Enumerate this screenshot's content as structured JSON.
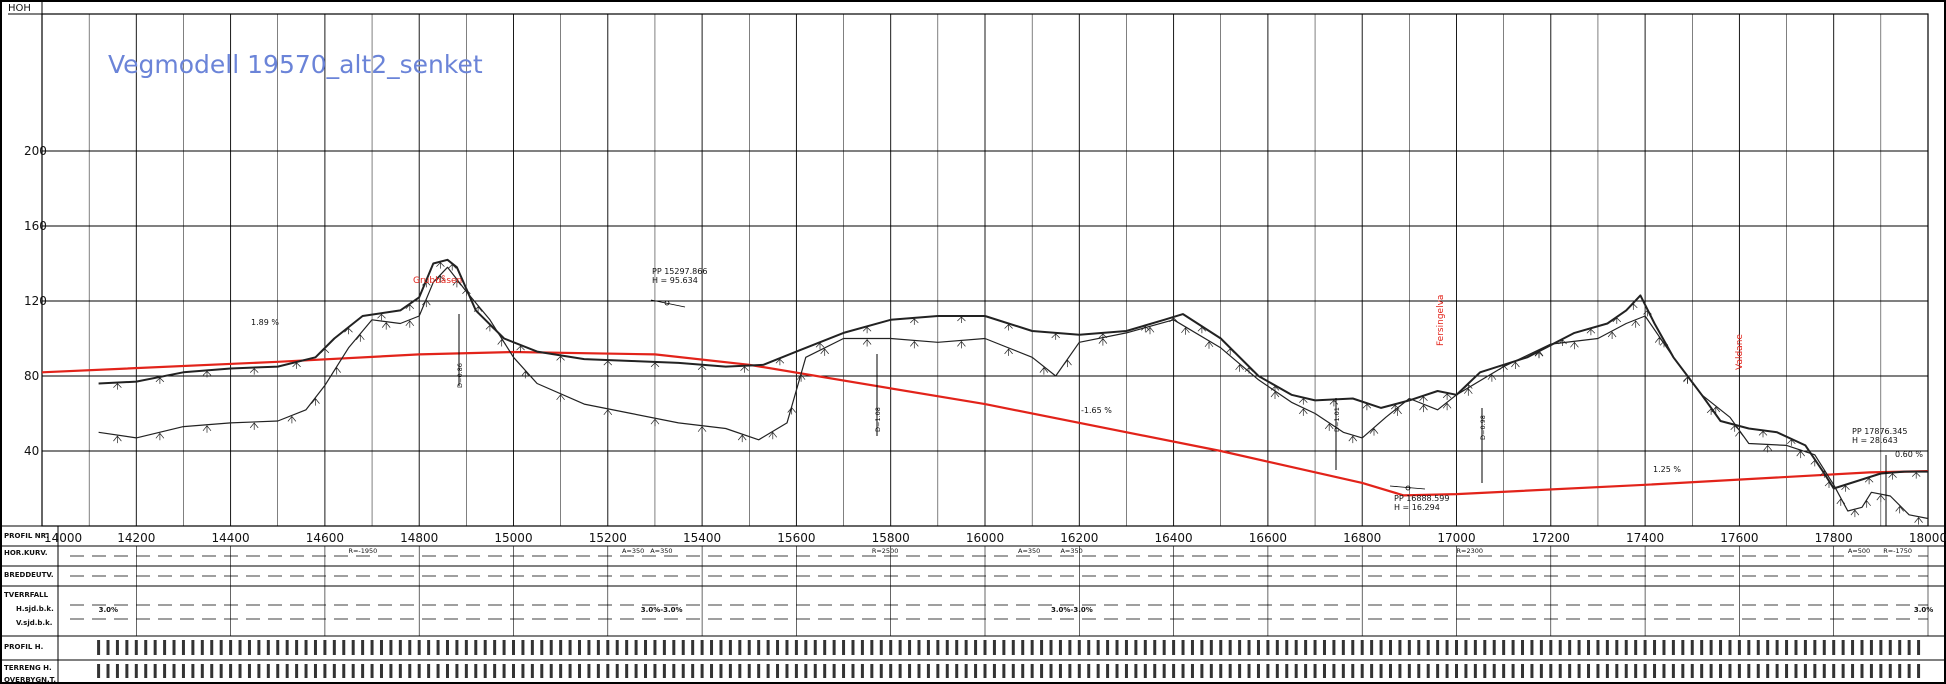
{
  "title": "Vegmodell 19570_alt2_senket",
  "y_axis": {
    "label": "HOH",
    "ticks": [
      {
        "label": "200",
        "value": 200
      },
      {
        "label": "160",
        "value": 160
      },
      {
        "label": "120",
        "value": 120
      },
      {
        "label": "80",
        "value": 80
      },
      {
        "label": "40",
        "value": 40
      }
    ]
  },
  "x_axis": {
    "label": "PROFIL NR.",
    "first_label": "14000",
    "ticks": [
      {
        "label": "14200",
        "value": 14200
      },
      {
        "label": "14400",
        "value": 14400
      },
      {
        "label": "14600",
        "value": 14600
      },
      {
        "label": "14800",
        "value": 14800
      },
      {
        "label": "15000",
        "value": 15000
      },
      {
        "label": "15200",
        "value": 15200
      },
      {
        "label": "15400",
        "value": 15400
      },
      {
        "label": "15600",
        "value": 15600
      },
      {
        "label": "15800",
        "value": 15800
      },
      {
        "label": "16000",
        "value": 16000
      },
      {
        "label": "16200",
        "value": 16200
      },
      {
        "label": "16400",
        "value": 16400
      },
      {
        "label": "16600",
        "value": 16600
      },
      {
        "label": "16800",
        "value": 16800
      },
      {
        "label": "17000",
        "value": 17000
      },
      {
        "label": "17200",
        "value": 17200
      },
      {
        "label": "17400",
        "value": 17400
      },
      {
        "label": "17600",
        "value": 17600
      },
      {
        "label": "17800",
        "value": 17800
      },
      {
        "label": "18000",
        "value": 18000
      }
    ]
  },
  "annotations": {
    "pp1": {
      "line1": "PP 15297.866",
      "line2": "H = 95.634"
    },
    "pp2": {
      "line1": "PP 16888.599",
      "line2": "H = 16.294"
    },
    "pp3": {
      "line1": "PP 17876.345",
      "line2": "H = 28.643"
    },
    "grade_a": "1.89 %",
    "grade_b": "-1.65 %",
    "grade_c": "1.25 %",
    "grade_d": "0.60 %",
    "place_1": "Grubbåsen",
    "place_2": "Fersingelva",
    "place_3": "Valdane"
  },
  "bands": {
    "hor_kurv": "HOR.KURV.",
    "breddeutv": "BREDDEUTV.",
    "tverrfall": "TVERRFALL",
    "h_sjd": "H.sjd.b.k.",
    "v_sjd": "V.sjd.b.k.",
    "profil_h": "PROFIL H.",
    "terreng_h": "TERRENG H.",
    "overbygn": "OVERBYGN.T.",
    "hor_items": [
      {
        "label": "R=-1950",
        "station": 14650
      },
      {
        "label": "A=350",
        "station": 15230
      },
      {
        "label": "A=350",
        "station": 15290
      },
      {
        "label": "R=2500",
        "station": 15760
      },
      {
        "label": "A=350",
        "station": 16070
      },
      {
        "label": "A=350",
        "station": 16160
      },
      {
        "label": "R=2300",
        "station": 17000
      },
      {
        "label": "A=500",
        "station": 17830
      },
      {
        "label": "R=-1750",
        "station": 17905
      }
    ],
    "tverrfall_items": [
      {
        "label": "3.0%",
        "station": 14120
      },
      {
        "label": "3.0%-3.0%",
        "station": 15270
      },
      {
        "label": "3.0%-3.0%",
        "station": 16140
      },
      {
        "label": "3.0%",
        "station": 17970
      }
    ]
  },
  "chart_data": {
    "type": "line",
    "title": "Vegmodell 19570_alt2_senket",
    "xlabel": "PROFIL NR.",
    "ylabel": "HOH",
    "xlim": [
      14000,
      18000
    ],
    "ylim": [
      0,
      210
    ],
    "grid": true,
    "series": [
      {
        "values_type": "road",
        "color": "#e2231a",
        "x": [
          14000,
          14500,
          14800,
          15000,
          15300,
          15500,
          16000,
          16500,
          16800,
          16888,
          17000,
          17400,
          17876,
          18000
        ],
        "y": [
          82,
          87.6,
          91.5,
          92.8,
          91.5,
          86,
          65,
          40,
          23,
          16.3,
          17,
          22,
          28.6,
          29.3
        ]
      },
      {
        "values_type": "terrain-upper",
        "color": "#222222",
        "x": [
          14120,
          14200,
          14300,
          14400,
          14500,
          14580,
          14620,
          14680,
          14760,
          14800,
          14830,
          14860,
          14880,
          14920,
          14980,
          15050,
          15150,
          15250,
          15350,
          15450,
          15530,
          15600,
          15700,
          15800,
          15900,
          16000,
          16100,
          16200,
          16300,
          16380,
          16420,
          16500,
          16580,
          16650,
          16700,
          16780,
          16840,
          16900,
          16960,
          17000,
          17050,
          17150,
          17250,
          17320,
          17360,
          17390,
          17420,
          17460,
          17520,
          17560,
          17620,
          17680,
          17740,
          17780,
          17800,
          17850,
          17900,
          17950,
          18000
        ],
        "y": [
          76,
          77,
          82,
          84,
          85,
          90,
          100,
          112,
          115,
          122,
          140,
          142,
          138,
          115,
          100,
          93,
          89,
          88,
          87,
          85,
          86,
          93,
          103,
          110,
          112,
          112,
          104,
          102,
          104,
          110,
          113,
          100,
          80,
          70,
          67,
          68,
          63,
          67,
          72,
          70,
          82,
          90,
          103,
          108,
          115,
          123,
          108,
          90,
          70,
          56,
          52,
          50,
          43,
          28,
          20,
          24,
          28,
          29,
          29
        ]
      },
      {
        "values_type": "terrain-lower",
        "color": "#222222",
        "x": [
          14120,
          14200,
          14300,
          14400,
          14500,
          14560,
          14600,
          14650,
          14700,
          14760,
          14800,
          14830,
          14860,
          14900,
          14950,
          15000,
          15050,
          15150,
          15250,
          15350,
          15450,
          15520,
          15580,
          15620,
          15700,
          15800,
          15900,
          16000,
          16100,
          16150,
          16200,
          16300,
          16400,
          16500,
          16580,
          16650,
          16700,
          16760,
          16800,
          16850,
          16900,
          16960,
          17000,
          17100,
          17200,
          17300,
          17360,
          17400,
          17460,
          17520,
          17580,
          17620,
          17700,
          17760,
          17800,
          17830,
          17860,
          17880,
          17920,
          17960,
          18000
        ],
        "y": [
          50,
          47,
          53,
          55,
          56,
          62,
          75,
          95,
          110,
          108,
          112,
          130,
          138,
          125,
          110,
          90,
          76,
          65,
          60,
          55,
          52,
          46,
          55,
          90,
          100,
          100,
          98,
          100,
          90,
          80,
          98,
          103,
          110,
          95,
          78,
          66,
          60,
          50,
          47,
          58,
          68,
          62,
          70,
          85,
          97,
          100,
          108,
          112,
          90,
          70,
          58,
          44,
          43,
          38,
          22,
          8,
          10,
          18,
          16,
          6,
          4
        ]
      }
    ]
  }
}
